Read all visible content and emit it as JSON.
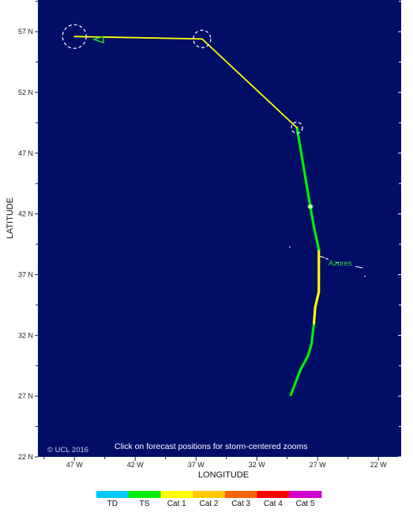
{
  "map": {
    "copyright": "© UCL 2016",
    "note": "Click on forecast positions for storm-centered zooms",
    "place_label": "Azores",
    "x_axis_title": "LONGITUDE",
    "y_axis_title": "LATITUDE",
    "ocean_color": "#000e66",
    "lon_ticks": [
      {
        "value": -47,
        "label": "47 W"
      },
      {
        "value": -42,
        "label": "42 W"
      },
      {
        "value": -37,
        "label": "37 W"
      },
      {
        "value": -32,
        "label": "32 W"
      },
      {
        "value": -27,
        "label": "27 W"
      },
      {
        "value": -22,
        "label": "22 W"
      }
    ],
    "lat_ticks": [
      {
        "value": 57,
        "label": "57 N"
      },
      {
        "value": 52,
        "label": "52 N"
      },
      {
        "value": 47,
        "label": "47 N"
      },
      {
        "value": 42,
        "label": "42 N"
      },
      {
        "value": 37,
        "label": "37 N"
      },
      {
        "value": 32,
        "label": "32 N"
      },
      {
        "value": 27,
        "label": "27 N"
      },
      {
        "value": 22,
        "label": "22 N"
      }
    ],
    "track": [
      {
        "lon": -29.2,
        "lat": 27.1,
        "cat": "TS"
      },
      {
        "lon": -28.4,
        "lat": 29.2,
        "cat": "TS"
      },
      {
        "lon": -27.8,
        "lat": 30.3,
        "cat": "TS"
      },
      {
        "lon": -27.5,
        "lat": 31.3,
        "cat": "TS"
      },
      {
        "lon": -27.3,
        "lat": 33.0,
        "cat": "Cat 1"
      },
      {
        "lon": -27.2,
        "lat": 34.3,
        "cat": "Cat 1"
      },
      {
        "lon": -26.9,
        "lat": 35.6,
        "cat": "Cat 1"
      },
      {
        "lon": -26.9,
        "lat": 37.0,
        "cat": "Cat 1"
      },
      {
        "lon": -26.9,
        "lat": 38.0,
        "cat": "Cat 1"
      },
      {
        "lon": -26.9,
        "lat": 39.1,
        "cat": "TS"
      },
      {
        "lon": -27.3,
        "lat": 40.9,
        "cat": "TS"
      },
      {
        "lon": -27.6,
        "lat": 42.6,
        "cat": "TS"
      },
      {
        "lon": -28.7,
        "lat": 49.1,
        "cat": "Cat 1"
      },
      {
        "lon": -36.5,
        "lat": 56.4,
        "cat": "Cat 1"
      },
      {
        "lon": -47.0,
        "lat": 56.6,
        "cat": ""
      }
    ],
    "forecast_positions": [
      {
        "lon": -28.7,
        "lat": 49.1
      },
      {
        "lon": -36.5,
        "lat": 56.4
      },
      {
        "lon": -47.0,
        "lat": 56.6
      }
    ],
    "current_position": {
      "lon": -27.6,
      "lat": 42.6
    }
  },
  "legend": [
    {
      "label": "TD",
      "color": "#00c8ff"
    },
    {
      "label": "TS",
      "color": "#00ee00"
    },
    {
      "label": "Cat 1",
      "color": "#ffff00"
    },
    {
      "label": "Cat 2",
      "color": "#ffc800"
    },
    {
      "label": "Cat 3",
      "color": "#ff6400"
    },
    {
      "label": "Cat 4",
      "color": "#ff0000"
    },
    {
      "label": "Cat 5",
      "color": "#d000d0"
    }
  ]
}
